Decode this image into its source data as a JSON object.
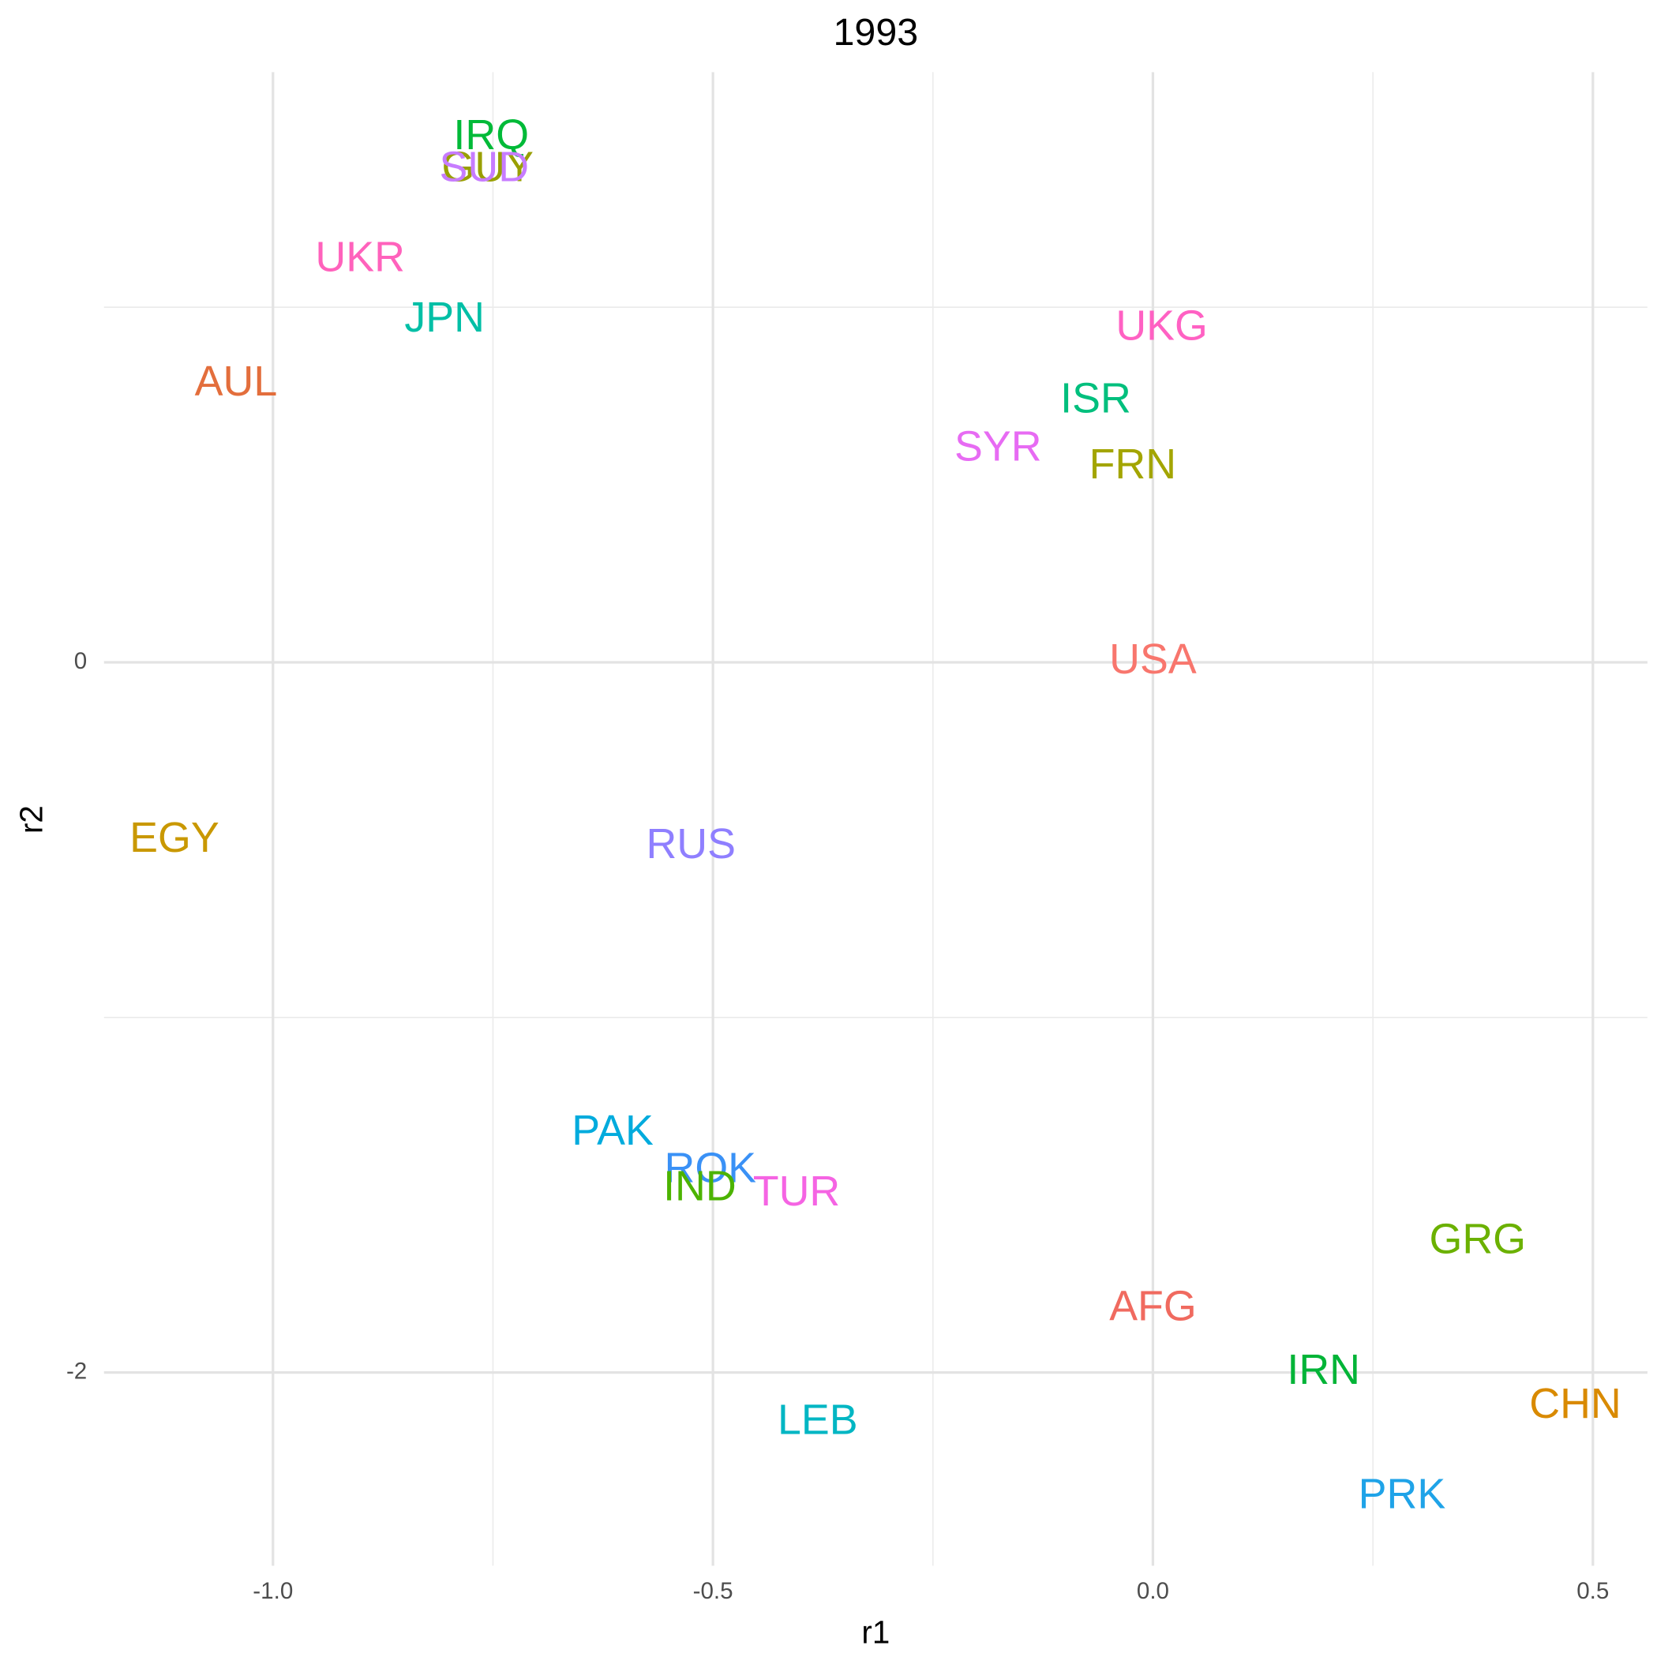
{
  "chart_data": {
    "type": "text_scatter",
    "title": "1993",
    "xlabel": "r1",
    "ylabel": "r2",
    "xlim": [
      -1.192,
      0.562
    ],
    "ylim": [
      -2.544,
      1.662
    ],
    "xticks": [
      {
        "value": -1.0,
        "label": "-1.0"
      },
      -0.5,
      {
        "value": 0.0,
        "label": "0.0"
      },
      0.5
    ],
    "yticks": [
      -2,
      0
    ],
    "grid": true,
    "points": [
      {
        "label": "USA",
        "color": "#F8766D",
        "x": 0.0,
        "y": 0.0
      },
      {
        "label": "UKG",
        "color": "#FF61C3",
        "x": 0.01,
        "y": 0.94
      },
      {
        "label": "ISR",
        "color": "#00BF7D",
        "x": -0.065,
        "y": 0.735
      },
      {
        "label": "SYR",
        "color": "#E76BF3",
        "x": -0.176,
        "y": 0.6
      },
      {
        "label": "FRN",
        "color": "#A3A500",
        "x": -0.023,
        "y": 0.55
      },
      {
        "label": "IRQ",
        "color": "#00BA38",
        "x": -0.752,
        "y": 1.477
      },
      {
        "label": "GUY",
        "color": "#999F00",
        "x": -0.756,
        "y": 1.387
      },
      {
        "label": "SUD",
        "color": "#C77CFF",
        "x": -0.76,
        "y": 1.387
      },
      {
        "label": "UKR",
        "color": "#FF62BC",
        "x": -0.901,
        "y": 1.133
      },
      {
        "label": "JPN",
        "color": "#00BFA6",
        "x": -0.805,
        "y": 0.963
      },
      {
        "label": "AUL",
        "color": "#E36E3C",
        "x": -1.042,
        "y": 0.783
      },
      {
        "label": "EGY",
        "color": "#C99800",
        "x": -1.112,
        "y": -0.502
      },
      {
        "label": "RUS",
        "color": "#8F7FFF",
        "x": -0.525,
        "y": -0.52
      },
      {
        "label": "PAK",
        "color": "#00ABDD",
        "x": -0.614,
        "y": -1.327
      },
      {
        "label": "ROK",
        "color": "#3A91F6",
        "x": -0.503,
        "y": -1.432
      },
      {
        "label": "IND",
        "color": "#4CB300",
        "x": -0.515,
        "y": -1.483
      },
      {
        "label": "TUR",
        "color": "#F564E3",
        "x": -0.405,
        "y": -1.498
      },
      {
        "label": "GRG",
        "color": "#6BB100",
        "x": 0.369,
        "y": -1.632
      },
      {
        "label": "AFG",
        "color": "#F06A5F",
        "x": 0.0,
        "y": -1.821
      },
      {
        "label": "IRN",
        "color": "#00B437",
        "x": 0.194,
        "y": -2.0
      },
      {
        "label": "CHN",
        "color": "#D98A00",
        "x": 0.48,
        "y": -2.096
      },
      {
        "label": "LEB",
        "color": "#00B6C3",
        "x": -0.381,
        "y": -2.141
      },
      {
        "label": "PRK",
        "color": "#1FA3E8",
        "x": 0.283,
        "y": -2.35
      }
    ]
  }
}
